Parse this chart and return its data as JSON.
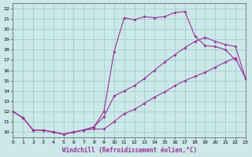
{
  "xlabel": "Windchill (Refroidissement éolien,°C)",
  "bg_color": "#cce8e8",
  "grid_color": "#99cccc",
  "line_color": "#993399",
  "xlim": [
    0,
    23
  ],
  "ylim": [
    9.5,
    22.5
  ],
  "xticks": [
    0,
    1,
    2,
    3,
    4,
    5,
    6,
    7,
    8,
    9,
    10,
    11,
    12,
    13,
    14,
    15,
    16,
    17,
    18,
    19,
    20,
    21,
    22,
    23
  ],
  "yticks": [
    10,
    11,
    12,
    13,
    14,
    15,
    16,
    17,
    18,
    19,
    20,
    21,
    22
  ],
  "line1_x": [
    0,
    1,
    2,
    3,
    4,
    5,
    6,
    7,
    8,
    9,
    10,
    11,
    12,
    13,
    14,
    15,
    16,
    17,
    18,
    19,
    20,
    21,
    22,
    23
  ],
  "line1_y": [
    12.0,
    11.4,
    10.2,
    10.2,
    10.0,
    9.8,
    10.0,
    10.2,
    10.3,
    10.3,
    11.0,
    11.8,
    12.2,
    12.8,
    13.4,
    13.9,
    14.5,
    15.0,
    15.4,
    15.8,
    16.3,
    16.8,
    17.2,
    15.2
  ],
  "line2_x": [
    0,
    1,
    2,
    3,
    4,
    5,
    6,
    7,
    8,
    9,
    10,
    11,
    12,
    13,
    14,
    15,
    16,
    17,
    18,
    19,
    20,
    21,
    22,
    23
  ],
  "line2_y": [
    12.0,
    11.4,
    10.2,
    10.2,
    10.0,
    9.8,
    10.0,
    10.2,
    10.5,
    11.5,
    13.5,
    14.0,
    14.5,
    15.2,
    16.0,
    16.8,
    17.5,
    18.2,
    18.8,
    19.2,
    18.8,
    18.5,
    18.3,
    15.2
  ],
  "line3_x": [
    0,
    1,
    2,
    3,
    4,
    5,
    6,
    7,
    8,
    9,
    10,
    11,
    12,
    13,
    14,
    15,
    16,
    17,
    18,
    19,
    20,
    21,
    22
  ],
  "line3_y": [
    12.0,
    11.4,
    10.2,
    10.2,
    10.0,
    9.8,
    10.0,
    10.2,
    10.5,
    12.0,
    17.8,
    21.1,
    20.9,
    21.2,
    21.1,
    21.2,
    21.6,
    21.7,
    19.3,
    18.4,
    18.3,
    18.0,
    17.0
  ]
}
